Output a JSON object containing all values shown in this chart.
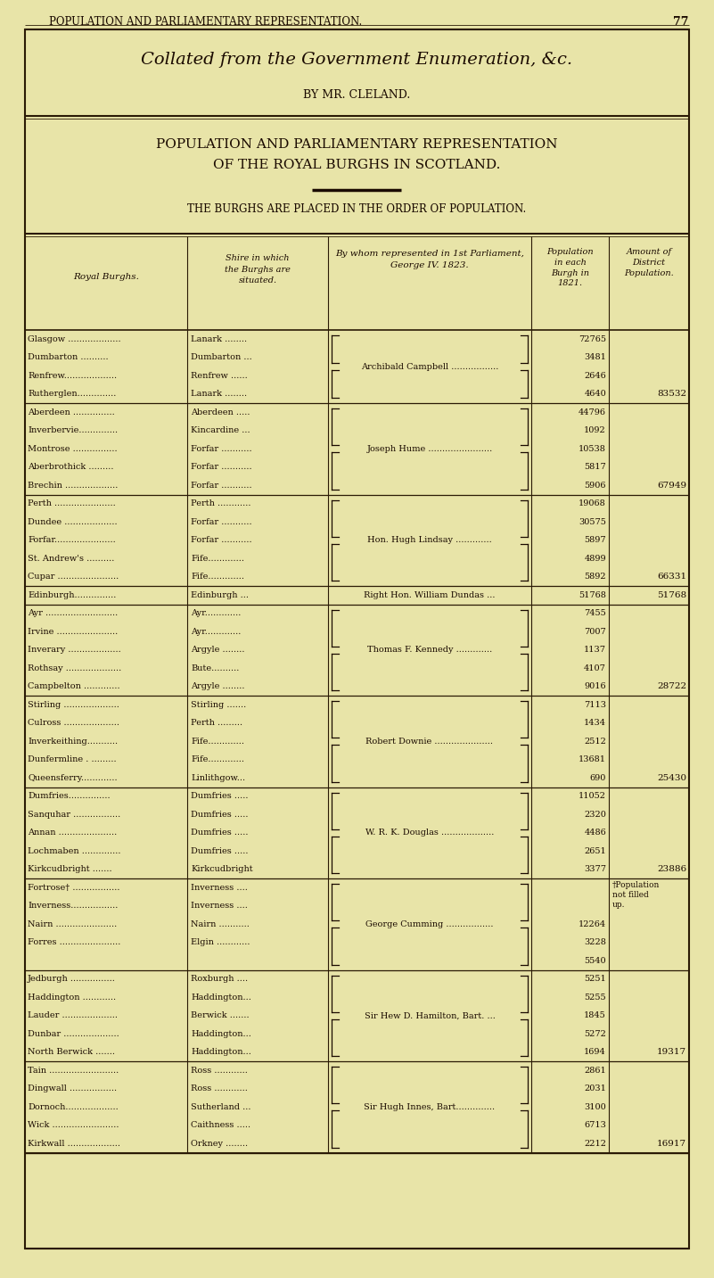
{
  "page_header": "POPULATION AND PARLIAMENTARY REPRESENTATION.",
  "page_number": "77",
  "italic_title": "Collated from the Government Enumeration, &c.",
  "by_line": "BY MR. CLELAND.",
  "main_title_line1": "POPULATION AND PARLIAMENTARY REPRESENTATION",
  "main_title_line2": "OF THE ROYAL BURGHS IN SCOTLAND.",
  "subtitle": "THE BURGHS ARE PLACED IN THE ORDER OF POPULATION.",
  "background_color": "#e8e4a8",
  "border_color": "#2a1a05",
  "text_color": "#1a0a00",
  "rows": [
    {
      "burgh": "Glasgow ...................",
      "shire": "Lanark ........",
      "pop": "72765",
      "dist": "",
      "group": 1
    },
    {
      "burgh": "Dumbarton ..........",
      "shire": "Dumbarton ...",
      "pop": "3481",
      "dist": "",
      "group": 1
    },
    {
      "burgh": "Renfrew...................",
      "shire": "Renfrew ......",
      "pop": "2646",
      "dist": "",
      "group": 1
    },
    {
      "burgh": "Rutherglen..............",
      "shire": "Lanark ........",
      "pop": "4640",
      "dist": "83532",
      "group": 1
    },
    {
      "burgh": "Aberdeen ...............",
      "shire": "Aberdeen .....",
      "pop": "44796",
      "dist": "",
      "group": 2
    },
    {
      "burgh": "Inverbervie..............",
      "shire": "Kincardine ...",
      "pop": "1092",
      "dist": "",
      "group": 2
    },
    {
      "burgh": "Montrose ................",
      "shire": "Forfar ...........",
      "pop": "10538",
      "dist": "",
      "group": 2
    },
    {
      "burgh": "Aberbrothick .........",
      "shire": "Forfar ...........",
      "pop": "5817",
      "dist": "",
      "group": 2
    },
    {
      "burgh": "Brechin ...................",
      "shire": "Forfar ...........",
      "pop": "5906",
      "dist": "67949",
      "group": 2
    },
    {
      "burgh": "Perth ......................",
      "shire": "Perth ............",
      "pop": "19068",
      "dist": "",
      "group": 3
    },
    {
      "burgh": "Dundee ...................",
      "shire": "Forfar ...........",
      "pop": "30575",
      "dist": "",
      "group": 3
    },
    {
      "burgh": "Forfar......................",
      "shire": "Forfar ...........",
      "pop": "5897",
      "dist": "",
      "group": 3
    },
    {
      "burgh": "St. Andrew's ..........",
      "shire": "Fife.............",
      "pop": "4899",
      "dist": "",
      "group": 3
    },
    {
      "burgh": "Cupar ......................",
      "shire": "Fife.............",
      "pop": "5892",
      "dist": "66331",
      "group": 3
    },
    {
      "burgh": "Edinburgh...............",
      "shire": "Edinburgh ...",
      "pop": "51768",
      "dist": "51768",
      "group": 4
    },
    {
      "burgh": "Ayr ..........................",
      "shire": "Ayr.............",
      "pop": "7455",
      "dist": "",
      "group": 5
    },
    {
      "burgh": "Irvine ......................",
      "shire": "Ayr.............",
      "pop": "7007",
      "dist": "",
      "group": 5
    },
    {
      "burgh": "Inverary ...................",
      "shire": "Argyle ........",
      "pop": "1137",
      "dist": "",
      "group": 5
    },
    {
      "burgh": "Rothsay ....................",
      "shire": "Bute..........",
      "pop": "4107",
      "dist": "",
      "group": 5
    },
    {
      "burgh": "Campbelton .............",
      "shire": "Argyle ........",
      "pop": "9016",
      "dist": "28722",
      "group": 5
    },
    {
      "burgh": "Stirling ....................",
      "shire": "Stirling .......",
      "pop": "7113",
      "dist": "",
      "group": 6
    },
    {
      "burgh": "Culross ....................",
      "shire": "Perth .........",
      "pop": "1434",
      "dist": "",
      "group": 6
    },
    {
      "burgh": "Inverkeithing...........",
      "shire": "Fife.............",
      "pop": "2512",
      "dist": "",
      "group": 6
    },
    {
      "burgh": "Dunfermline . .........",
      "shire": "Fife.............",
      "pop": "13681",
      "dist": "",
      "group": 6
    },
    {
      "burgh": "Queensferry.............",
      "shire": "Linlithgow...",
      "pop": "690",
      "dist": "25430",
      "group": 6
    },
    {
      "burgh": "Dumfries...............",
      "shire": "Dumfries .....",
      "pop": "11052",
      "dist": "",
      "group": 7
    },
    {
      "burgh": "Sanquhar .................",
      "shire": "Dumfries .....",
      "pop": "2320",
      "dist": "",
      "group": 7
    },
    {
      "burgh": "Annan .....................",
      "shire": "Dumfries .....",
      "pop": "4486",
      "dist": "",
      "group": 7
    },
    {
      "burgh": "Lochmaben ..............",
      "shire": "Dumfries .....",
      "pop": "2651",
      "dist": "",
      "group": 7
    },
    {
      "burgh": "Kirkcudbright .......",
      "shire": "Kirkcudbright",
      "pop": "3377",
      "dist": "23886",
      "group": 7
    },
    {
      "burgh": "Fortrose† .................",
      "shire": "Inverness ....",
      "pop": "",
      "dist": "†Population\nnot filled\nup.",
      "group": 8
    },
    {
      "burgh": "Inverness.................",
      "shire": "Inverness ....",
      "pop": "",
      "dist": "",
      "group": 8
    },
    {
      "burgh": "Nairn ......................",
      "shire": "Nairn ...........",
      "pop": "12264",
      "dist": "",
      "group": 8
    },
    {
      "burgh": "Forres ......................",
      "shire": "Elgin ............",
      "pop": "3228",
      "dist": "",
      "group": 8
    },
    {
      "burgh": "",
      "shire": "",
      "pop": "5540",
      "dist": "",
      "group": 8
    },
    {
      "burgh": "Jedburgh ................",
      "shire": "Roxburgh ....",
      "pop": "5251",
      "dist": "",
      "group": 9
    },
    {
      "burgh": "Haddington ............",
      "shire": "Haddington...",
      "pop": "5255",
      "dist": "",
      "group": 9
    },
    {
      "burgh": "Lauder ....................",
      "shire": "Berwick .......",
      "pop": "1845",
      "dist": "",
      "group": 9
    },
    {
      "burgh": "Dunbar ....................",
      "shire": "Haddington...",
      "pop": "5272",
      "dist": "",
      "group": 9
    },
    {
      "burgh": "North Berwick .......",
      "shire": "Haddington...",
      "pop": "1694",
      "dist": "19317",
      "group": 9
    },
    {
      "burgh": "Tain .........................",
      "shire": "Ross ............",
      "pop": "2861",
      "dist": "",
      "group": 10
    },
    {
      "burgh": "Dingwall .................",
      "shire": "Ross ............",
      "pop": "2031",
      "dist": "",
      "group": 10
    },
    {
      "burgh": "Dornoch...................",
      "shire": "Sutherland ...",
      "pop": "3100",
      "dist": "",
      "group": 10
    },
    {
      "burgh": "Wick ........................",
      "shire": "Caithness .....",
      "pop": "6713",
      "dist": "",
      "group": 10
    },
    {
      "burgh": "Kirkwall ...................",
      "shire": "Orkney ........",
      "pop": "2212",
      "dist": "16917",
      "group": 10
    }
  ],
  "groups": [
    {
      "rows": [
        0,
        3
      ],
      "rep": "Archibald Campbell ................."
    },
    {
      "rows": [
        4,
        8
      ],
      "rep": "Joseph Hume ......................."
    },
    {
      "rows": [
        9,
        13
      ],
      "rep": "Hon. Hugh Lindsay ............."
    },
    {
      "rows": [
        14,
        14
      ],
      "rep": "Right Hon. William Dundas ..."
    },
    {
      "rows": [
        15,
        19
      ],
      "rep": "Thomas F. Kennedy ............."
    },
    {
      "rows": [
        20,
        24
      ],
      "rep": "Robert Downie ....................."
    },
    {
      "rows": [
        25,
        29
      ],
      "rep": "W. R. K. Douglas ..................."
    },
    {
      "rows": [
        30,
        34
      ],
      "rep": "George Cumming ................."
    },
    {
      "rows": [
        35,
        39
      ],
      "rep": "Sir Hew D. Hamilton, Bart. ..."
    },
    {
      "rows": [
        40,
        44
      ],
      "rep": "Sir Hugh Innes, Bart.............."
    }
  ]
}
